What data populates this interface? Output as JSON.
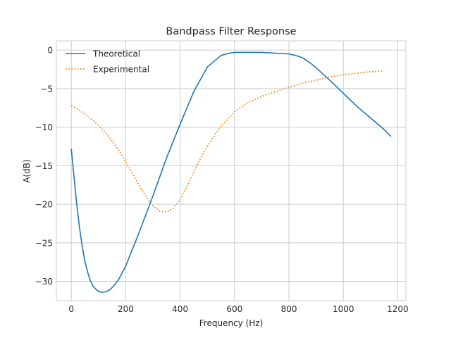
{
  "chart_data": {
    "type": "line",
    "title": "Bandpass Filter Response",
    "xlabel": "Frequency (Hz)",
    "ylabel": "A(dB)",
    "xlim": [
      -55,
      1230
    ],
    "ylim": [
      -32.5,
      1.2
    ],
    "xticks": [
      0,
      200,
      400,
      600,
      800,
      1000,
      1200
    ],
    "yticks": [
      0,
      -5,
      -10,
      -15,
      -20,
      -25,
      -30
    ],
    "grid": true,
    "legend_position": "top-left",
    "series": [
      {
        "name": "Theoretical",
        "color": "#1f77b4",
        "style": "solid",
        "x": [
          0,
          10,
          20,
          30,
          40,
          50,
          60,
          70,
          80,
          90,
          100,
          110,
          120,
          130,
          140,
          150,
          160,
          175,
          200,
          250,
          300,
          350,
          400,
          450,
          500,
          550,
          580,
          600,
          620,
          650,
          700,
          750,
          800,
          825,
          850,
          880,
          900,
          950,
          1000,
          1050,
          1100,
          1150,
          1175
        ],
        "y": [
          -12.8,
          -16.5,
          -20.0,
          -23.0,
          -25.5,
          -27.4,
          -28.8,
          -29.9,
          -30.6,
          -31.0,
          -31.3,
          -31.4,
          -31.4,
          -31.3,
          -31.1,
          -30.8,
          -30.4,
          -29.7,
          -28.0,
          -23.6,
          -18.9,
          -14.0,
          -9.6,
          -5.4,
          -2.2,
          -0.7,
          -0.4,
          -0.3,
          -0.3,
          -0.3,
          -0.3,
          -0.4,
          -0.5,
          -0.7,
          -1.0,
          -1.7,
          -2.3,
          -3.9,
          -5.6,
          -7.3,
          -8.8,
          -10.3,
          -11.2
        ]
      },
      {
        "name": "Experimental",
        "color": "#ff7f0e",
        "style": "dotted",
        "x": [
          0,
          25,
          50,
          75,
          100,
          125,
          150,
          175,
          200,
          225,
          250,
          275,
          300,
          325,
          350,
          375,
          400,
          425,
          450,
          475,
          500,
          525,
          550,
          600,
          650,
          700,
          750,
          800,
          850,
          900,
          950,
          1000,
          1050,
          1100,
          1150
        ],
        "y": [
          -7.2,
          -7.7,
          -8.3,
          -9.0,
          -9.8,
          -10.7,
          -11.8,
          -13.0,
          -14.5,
          -16.0,
          -17.6,
          -19.0,
          -20.2,
          -20.9,
          -21.0,
          -20.5,
          -19.4,
          -17.7,
          -15.8,
          -14.0,
          -12.5,
          -11.1,
          -9.9,
          -8.0,
          -6.8,
          -6.0,
          -5.4,
          -4.8,
          -4.3,
          -3.9,
          -3.5,
          -3.2,
          -3.0,
          -2.8,
          -2.7
        ]
      }
    ]
  }
}
